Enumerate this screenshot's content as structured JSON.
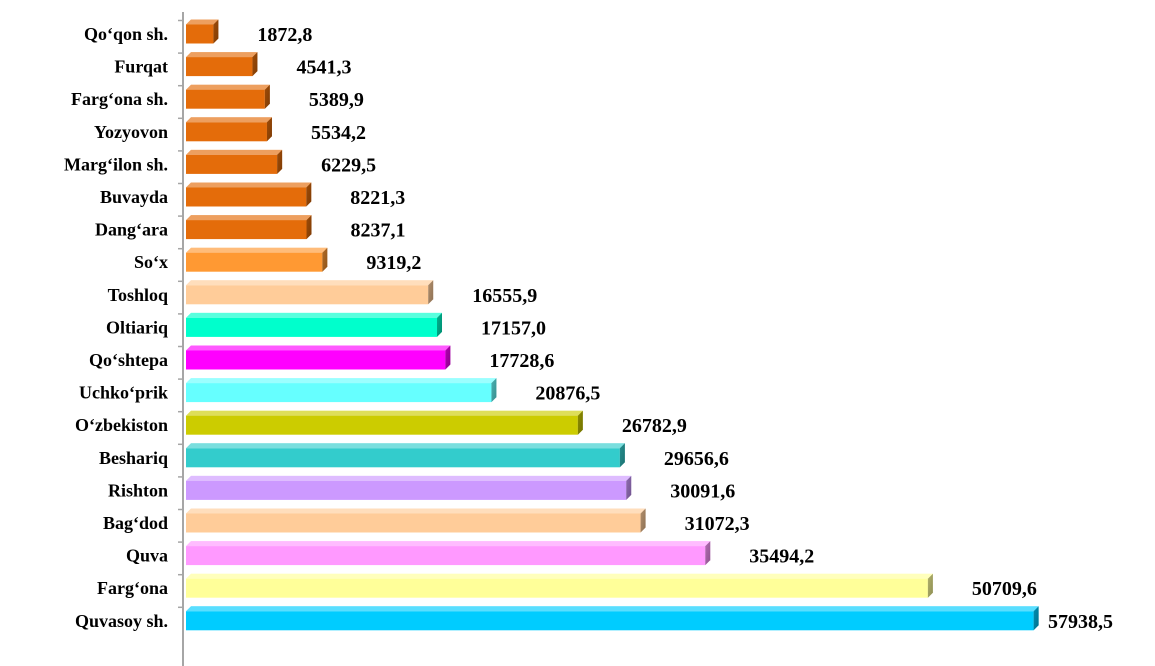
{
  "chart_data": {
    "type": "bar",
    "orientation": "horizontal",
    "title": "",
    "xlabel": "",
    "ylabel": "",
    "xlim": [
      0,
      62000
    ],
    "grid": false,
    "legend": "none",
    "categories": [
      "Qo‘qon sh.",
      "Furqat",
      "Farg‘ona sh.",
      "Yozyovon",
      "Marg‘ilon sh.",
      "Buvayda",
      "Dang‘ara",
      "So‘x",
      "Toshloq",
      "Oltiariq",
      "Qo‘shtepa",
      "Uchko‘prik",
      "O‘zbekiston",
      "Beshariq",
      "Rishton",
      "Bag‘dod",
      "Quva",
      "Farg‘ona",
      "Quvasoy sh."
    ],
    "values": [
      1872.8,
      4541.3,
      5389.9,
      5534.2,
      6229.5,
      8221.3,
      8237.1,
      9319.2,
      16555.9,
      17157.0,
      17728.6,
      20876.5,
      26782.9,
      29656.6,
      30091.6,
      31072.3,
      35494.2,
      50709.6,
      57938.5
    ],
    "value_labels": [
      "1872,8",
      "4541,3",
      "5389,9",
      "5534,2",
      "6229,5",
      "8221,3",
      "8237,1",
      "9319,2",
      "16555,9",
      "17157,0",
      "17728,6",
      "20876,5",
      "26782,9",
      "29656,6",
      "30091,6",
      "31072,3",
      "35494,2",
      "50709,6",
      "57938,5"
    ],
    "colors": [
      "#E46C0A",
      "#E46C0A",
      "#E46C0A",
      "#E46C0A",
      "#E46C0A",
      "#E46C0A",
      "#E46C0A",
      "#FF9933",
      "#FFCC99",
      "#00FFCC",
      "#FF00FF",
      "#66FFFF",
      "#CCCC00",
      "#33CCCC",
      "#CC99FF",
      "#FFCC99",
      "#FF99FF",
      "#FFFF99",
      "#00CCFF"
    ]
  }
}
